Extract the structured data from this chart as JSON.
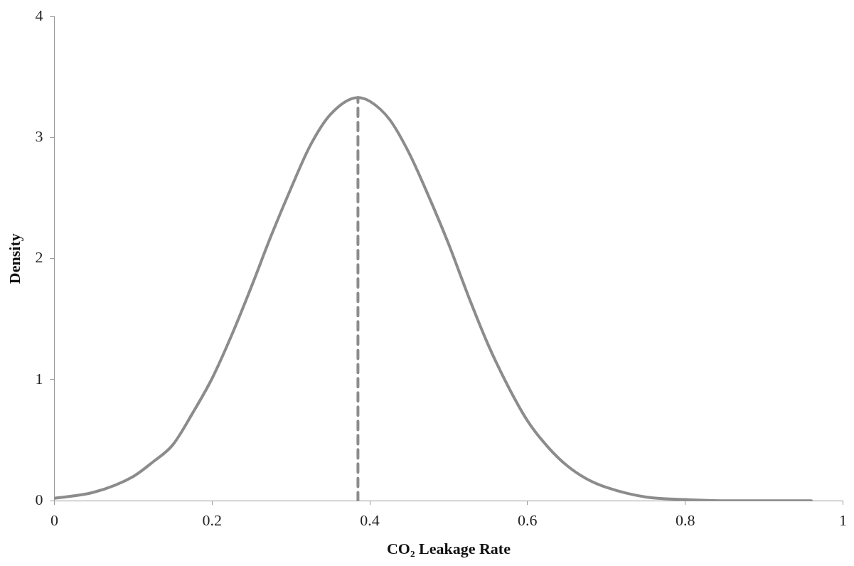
{
  "chart_data": {
    "type": "line",
    "xlabel": "CO₂ Leakage Rate",
    "ylabel": "Density",
    "xlim": [
      0,
      1
    ],
    "xticks": [
      0,
      0.2,
      0.4,
      0.6,
      0.8,
      1
    ],
    "ylim": [
      0,
      4
    ],
    "yticks": [
      0,
      1,
      2,
      3,
      4
    ],
    "grid": false,
    "legend": false,
    "marker": "none",
    "series": [
      {
        "color": "#8c8c8c",
        "line_style": "solid",
        "x": [
          0,
          0.05,
          0.1,
          0.125,
          0.15,
          0.175,
          0.2,
          0.225,
          0.25,
          0.275,
          0.3,
          0.325,
          0.35,
          0.385,
          0.4,
          0.425,
          0.45,
          0.475,
          0.5,
          0.525,
          0.55,
          0.575,
          0.6,
          0.625,
          0.65,
          0.675,
          0.7,
          0.75,
          0.8,
          0.85,
          0.9,
          0.96
        ],
        "values": [
          0.02,
          0.07,
          0.2,
          0.32,
          0.46,
          0.72,
          1.01,
          1.37,
          1.77,
          2.19,
          2.58,
          2.94,
          3.19,
          3.33,
          3.3,
          3.15,
          2.87,
          2.51,
          2.12,
          1.69,
          1.29,
          0.95,
          0.66,
          0.45,
          0.29,
          0.18,
          0.11,
          0.03,
          0.01,
          0,
          0,
          0
        ]
      },
      {
        "color": "#8c8c8c",
        "line_style": "dashed",
        "x": [
          0.385,
          0.385
        ],
        "values": [
          0,
          3.33
        ]
      }
    ]
  }
}
